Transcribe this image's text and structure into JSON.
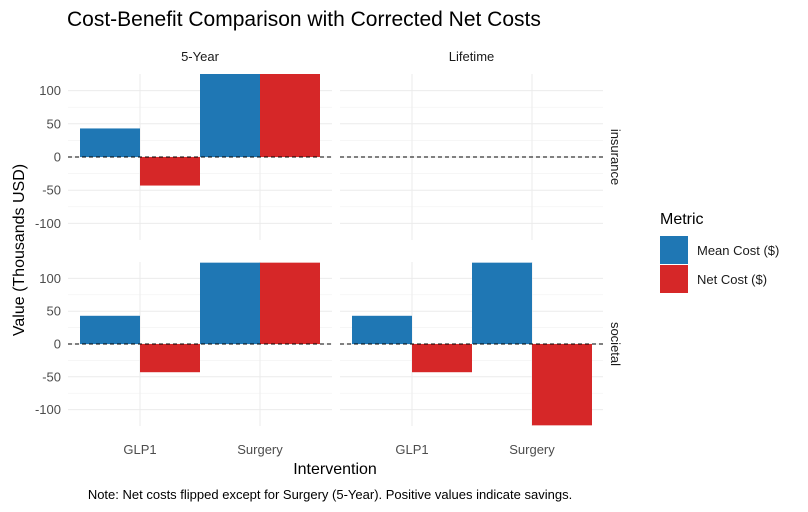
{
  "chart_data": {
    "type": "bar",
    "title": "Cost-Benefit Comparison with Corrected Net Costs",
    "xlabel": "Intervention",
    "ylabel": "Value (Thousands USD)",
    "caption": "Note: Net costs flipped except for Surgery (5-Year). Positive values indicate savings.",
    "categories": [
      "GLP1",
      "Surgery"
    ],
    "column_facets": [
      "5-Year",
      "Lifetime"
    ],
    "row_facets": [
      "insurance",
      "societal"
    ],
    "ylim": [
      -125,
      125
    ],
    "yticks": [
      -100,
      -50,
      0,
      50,
      100
    ],
    "grid": true,
    "zero_line": "dashed",
    "legend": {
      "title": "Metric",
      "position": "right",
      "items": [
        {
          "name": "Mean Cost ($)",
          "color": "#1f77b4"
        },
        {
          "name": "Net Cost ($)",
          "color": "#d62728"
        }
      ]
    },
    "panels": [
      {
        "col": "5-Year",
        "row": "insurance",
        "series": [
          {
            "name": "Mean Cost ($)",
            "values": [
              43,
              125
            ]
          },
          {
            "name": "Net Cost ($)",
            "values": [
              -43,
              125
            ]
          }
        ]
      },
      {
        "col": "Lifetime",
        "row": "insurance",
        "series": [
          {
            "name": "Mean Cost ($)",
            "values": [
              null,
              null
            ]
          },
          {
            "name": "Net Cost ($)",
            "values": [
              null,
              null
            ]
          }
        ]
      },
      {
        "col": "5-Year",
        "row": "societal",
        "series": [
          {
            "name": "Mean Cost ($)",
            "values": [
              43,
              124
            ]
          },
          {
            "name": "Net Cost ($)",
            "values": [
              -43,
              124
            ]
          }
        ]
      },
      {
        "col": "Lifetime",
        "row": "societal",
        "series": [
          {
            "name": "Mean Cost ($)",
            "values": [
              43,
              124
            ]
          },
          {
            "name": "Net Cost ($)",
            "values": [
              -43,
              -124
            ]
          }
        ]
      }
    ]
  }
}
